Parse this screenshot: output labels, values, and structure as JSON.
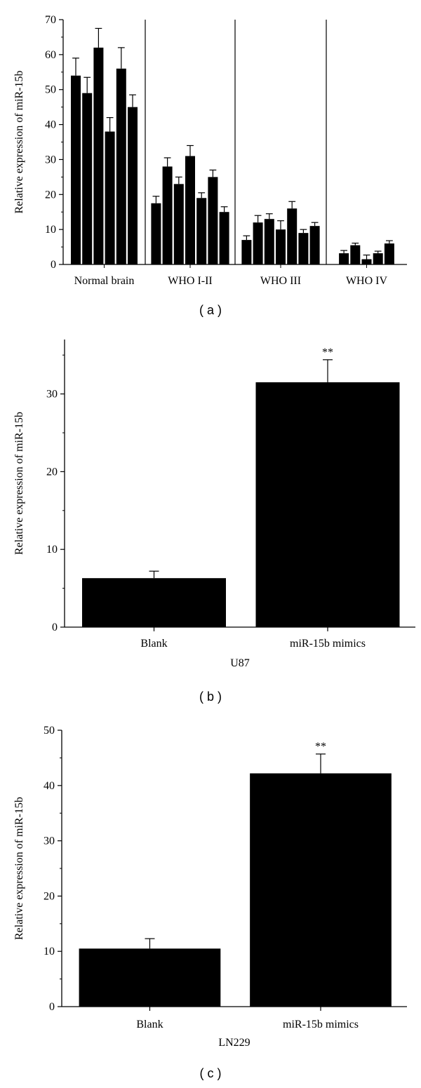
{
  "chart_data": [
    {
      "type": "bar",
      "panel_label": "( a )",
      "ylabel": "Relative expression of miR-15b",
      "ylim": [
        0,
        70
      ],
      "yticks": [
        0,
        10,
        20,
        30,
        40,
        50,
        60,
        70
      ],
      "error_bars": true,
      "groups": [
        {
          "name": "Normal brain",
          "values": [
            54,
            49,
            62,
            38,
            56,
            45
          ],
          "errors": [
            5,
            4.5,
            5.5,
            4,
            6,
            3.5
          ]
        },
        {
          "name": "WHO I-II",
          "values": [
            17.5,
            28,
            23,
            31,
            19,
            25,
            15
          ],
          "errors": [
            2,
            2.5,
            2,
            3,
            1.5,
            2,
            1.5
          ]
        },
        {
          "name": "WHO III",
          "values": [
            7,
            12,
            13,
            10,
            16,
            9,
            11
          ],
          "errors": [
            1.2,
            2,
            1.5,
            2.5,
            2,
            1,
            1
          ]
        },
        {
          "name": "WHO IV",
          "values": [
            3.2,
            5.5,
            1.5,
            3.2,
            6
          ],
          "errors": [
            0.8,
            0.6,
            1.2,
            0.6,
            0.8
          ]
        }
      ]
    },
    {
      "type": "bar",
      "panel_label": "( b )",
      "ylabel": "Relative expression of miR-15b",
      "xlabel": "U87",
      "ylim": [
        0,
        37
      ],
      "yticks": [
        0,
        10,
        20,
        30
      ],
      "categories": [
        "Blank",
        "miR-15b mimics"
      ],
      "values": [
        6.3,
        31.5
      ],
      "errors": [
        0.9,
        2.9
      ],
      "significance": [
        "",
        "**"
      ]
    },
    {
      "type": "bar",
      "panel_label": "( c )",
      "ylabel": "Relative expression of miR-15b",
      "xlabel": "LN229",
      "ylim": [
        0,
        50
      ],
      "yticks": [
        0,
        10,
        20,
        30,
        40,
        50
      ],
      "categories": [
        "Blank",
        "miR-15b mimics"
      ],
      "values": [
        10.5,
        42.2
      ],
      "errors": [
        1.8,
        3.5
      ],
      "significance": [
        "",
        "**"
      ]
    }
  ]
}
